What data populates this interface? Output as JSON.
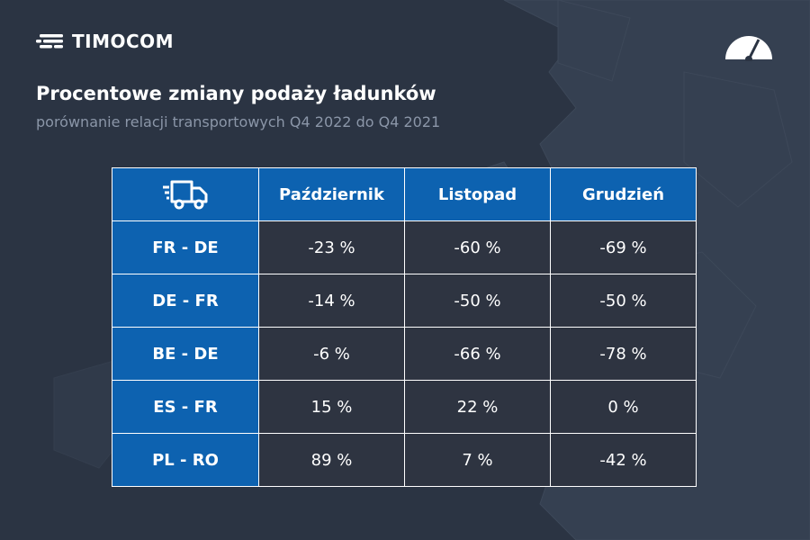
{
  "brand": {
    "name": "TIMOCOM",
    "logo_icon": "timocom-stripes-icon",
    "corner_icon": "speedometer-icon"
  },
  "title": "Procentowe zmiany podaży ładunków",
  "subtitle": "porównanie relacji transportowych Q4 2022 do Q4 2021",
  "colors": {
    "background": "#2b3443",
    "header_blue": "#0d62b0",
    "cell_dark": "#2e3441",
    "subtitle_gray": "#8b96a8",
    "border": "#ffffff"
  },
  "chart_data": {
    "type": "table",
    "corner_icon": "truck-icon",
    "columns": [
      "Październik",
      "Listopad",
      "Grudzień"
    ],
    "rows": [
      {
        "label": "FR - DE",
        "values": [
          "-23 %",
          "-60 %",
          "-69 %"
        ]
      },
      {
        "label": "DE - FR",
        "values": [
          "-14 %",
          "-50 %",
          "-50 %"
        ]
      },
      {
        "label": "BE - DE",
        "values": [
          "-6 %",
          "-66 %",
          "-78 %"
        ]
      },
      {
        "label": "ES - FR",
        "values": [
          "15 %",
          "22 %",
          "0 %"
        ]
      },
      {
        "label": "PL - RO",
        "values": [
          "89 %",
          "7 %",
          "-42 %"
        ]
      }
    ]
  }
}
